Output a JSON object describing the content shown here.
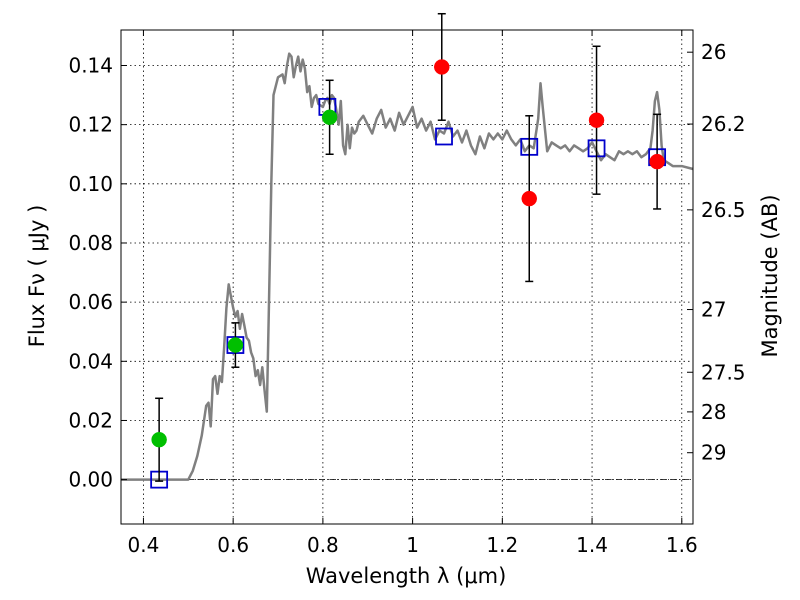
{
  "chart_data": {
    "type": "scatter",
    "xlabel": "Wavelength  λ (μm)",
    "ylabel": "Flux  Fν  ( μJy )",
    "y2label": "Magnitude (AB)",
    "xlim": [
      0.35,
      1.625
    ],
    "ylim": [
      -0.015,
      0.152
    ],
    "grid": true,
    "x_ticks": [
      {
        "value": 0.4,
        "label": "0.4"
      },
      {
        "value": 0.6,
        "label": "0.6"
      },
      {
        "value": 0.8,
        "label": "0.8"
      },
      {
        "value": 1.0,
        "label": "1"
      },
      {
        "value": 1.2,
        "label": "1.2"
      },
      {
        "value": 1.4,
        "label": "1.4"
      },
      {
        "value": 1.6,
        "label": "1.6"
      }
    ],
    "y_ticks": [
      {
        "value": 0.0,
        "label": "0.00"
      },
      {
        "value": 0.02,
        "label": "0.02"
      },
      {
        "value": 0.04,
        "label": "0.04"
      },
      {
        "value": 0.06,
        "label": "0.06"
      },
      {
        "value": 0.08,
        "label": "0.08"
      },
      {
        "value": 0.1,
        "label": "0.10"
      },
      {
        "value": 0.12,
        "label": "0.12"
      },
      {
        "value": 0.14,
        "label": "0.14"
      }
    ],
    "y2_ticks": [
      {
        "label": "26",
        "flux": 0.1445
      },
      {
        "label": "26.2",
        "flux": 0.1202
      },
      {
        "label": "26.5",
        "flux": 0.0912
      },
      {
        "label": "27",
        "flux": 0.0575
      },
      {
        "label": "27.5",
        "flux": 0.0363
      },
      {
        "label": "28",
        "flux": 0.0229
      },
      {
        "label": "29",
        "flux": 0.0091
      }
    ],
    "zero_line": 0.0,
    "series": [
      {
        "kind": "line",
        "color": "#808080",
        "points": [
          [
            0.35,
            0.0
          ],
          [
            0.5,
            0.0
          ],
          [
            0.51,
            0.003
          ],
          [
            0.52,
            0.008
          ],
          [
            0.53,
            0.015
          ],
          [
            0.54,
            0.025
          ],
          [
            0.545,
            0.026
          ],
          [
            0.55,
            0.018
          ],
          [
            0.555,
            0.034
          ],
          [
            0.56,
            0.035
          ],
          [
            0.565,
            0.029
          ],
          [
            0.57,
            0.035
          ],
          [
            0.575,
            0.033
          ],
          [
            0.58,
            0.045
          ],
          [
            0.585,
            0.058
          ],
          [
            0.59,
            0.066
          ],
          [
            0.595,
            0.062
          ],
          [
            0.6,
            0.058
          ],
          [
            0.605,
            0.055
          ],
          [
            0.61,
            0.057
          ],
          [
            0.615,
            0.051
          ],
          [
            0.62,
            0.056
          ],
          [
            0.625,
            0.052
          ],
          [
            0.63,
            0.048
          ],
          [
            0.635,
            0.047
          ],
          [
            0.64,
            0.043
          ],
          [
            0.645,
            0.041
          ],
          [
            0.65,
            0.035
          ],
          [
            0.655,
            0.037
          ],
          [
            0.66,
            0.032
          ],
          [
            0.665,
            0.038
          ],
          [
            0.67,
            0.03
          ],
          [
            0.675,
            0.023
          ],
          [
            0.68,
            0.06
          ],
          [
            0.685,
            0.1
          ],
          [
            0.69,
            0.13
          ],
          [
            0.7,
            0.136
          ],
          [
            0.71,
            0.137
          ],
          [
            0.715,
            0.134
          ],
          [
            0.72,
            0.14
          ],
          [
            0.725,
            0.144
          ],
          [
            0.73,
            0.143
          ],
          [
            0.735,
            0.136
          ],
          [
            0.74,
            0.14
          ],
          [
            0.745,
            0.143
          ],
          [
            0.75,
            0.138
          ],
          [
            0.755,
            0.142
          ],
          [
            0.76,
            0.139
          ],
          [
            0.765,
            0.131
          ],
          [
            0.77,
            0.133
          ],
          [
            0.775,
            0.126
          ],
          [
            0.78,
            0.129
          ],
          [
            0.785,
            0.13
          ],
          [
            0.79,
            0.127
          ],
          [
            0.8,
            0.126
          ],
          [
            0.805,
            0.128
          ],
          [
            0.81,
            0.129
          ],
          [
            0.815,
            0.127
          ],
          [
            0.82,
            0.13
          ],
          [
            0.825,
            0.129
          ],
          [
            0.83,
            0.125
          ],
          [
            0.835,
            0.12
          ],
          [
            0.84,
            0.128
          ],
          [
            0.845,
            0.113
          ],
          [
            0.85,
            0.11
          ],
          [
            0.855,
            0.12
          ],
          [
            0.86,
            0.112
          ],
          [
            0.865,
            0.119
          ],
          [
            0.87,
            0.117
          ],
          [
            0.875,
            0.118
          ],
          [
            0.88,
            0.121
          ],
          [
            0.89,
            0.123
          ],
          [
            0.9,
            0.12
          ],
          [
            0.91,
            0.117
          ],
          [
            0.92,
            0.122
          ],
          [
            0.93,
            0.125
          ],
          [
            0.94,
            0.119
          ],
          [
            0.95,
            0.122
          ],
          [
            0.96,
            0.118
          ],
          [
            0.97,
            0.124
          ],
          [
            0.98,
            0.12
          ],
          [
            0.99,
            0.123
          ],
          [
            1.0,
            0.126
          ],
          [
            1.01,
            0.119
          ],
          [
            1.02,
            0.122
          ],
          [
            1.03,
            0.118
          ],
          [
            1.04,
            0.121
          ],
          [
            1.05,
            0.115
          ],
          [
            1.06,
            0.118
          ],
          [
            1.07,
            0.117
          ],
          [
            1.08,
            0.121
          ],
          [
            1.09,
            0.116
          ],
          [
            1.1,
            0.118
          ],
          [
            1.11,
            0.114
          ],
          [
            1.12,
            0.118
          ],
          [
            1.13,
            0.113
          ],
          [
            1.14,
            0.11
          ],
          [
            1.15,
            0.116
          ],
          [
            1.16,
            0.112
          ],
          [
            1.17,
            0.117
          ],
          [
            1.18,
            0.115
          ],
          [
            1.19,
            0.117
          ],
          [
            1.2,
            0.115
          ],
          [
            1.21,
            0.118
          ],
          [
            1.22,
            0.115
          ],
          [
            1.23,
            0.113
          ],
          [
            1.24,
            0.115
          ],
          [
            1.25,
            0.111
          ],
          [
            1.26,
            0.113
          ],
          [
            1.27,
            0.112
          ],
          [
            1.28,
            0.122
          ],
          [
            1.285,
            0.134
          ],
          [
            1.29,
            0.126
          ],
          [
            1.3,
            0.111
          ],
          [
            1.31,
            0.114
          ],
          [
            1.32,
            0.113
          ],
          [
            1.33,
            0.112
          ],
          [
            1.34,
            0.113
          ],
          [
            1.35,
            0.111
          ],
          [
            1.36,
            0.113
          ],
          [
            1.37,
            0.112
          ],
          [
            1.38,
            0.111
          ],
          [
            1.39,
            0.112
          ],
          [
            1.4,
            0.114
          ],
          [
            1.41,
            0.111
          ],
          [
            1.42,
            0.108
          ],
          [
            1.43,
            0.11
          ],
          [
            1.44,
            0.109
          ],
          [
            1.45,
            0.108
          ],
          [
            1.46,
            0.111
          ],
          [
            1.47,
            0.11
          ],
          [
            1.48,
            0.111
          ],
          [
            1.49,
            0.11
          ],
          [
            1.5,
            0.111
          ],
          [
            1.51,
            0.109
          ],
          [
            1.52,
            0.11
          ],
          [
            1.53,
            0.112
          ],
          [
            1.535,
            0.118
          ],
          [
            1.54,
            0.128
          ],
          [
            1.545,
            0.131
          ],
          [
            1.55,
            0.125
          ],
          [
            1.555,
            0.113
          ],
          [
            1.56,
            0.108
          ],
          [
            1.57,
            0.107
          ],
          [
            1.58,
            0.106
          ],
          [
            1.6,
            0.106
          ],
          [
            1.625,
            0.105
          ]
        ]
      },
      {
        "kind": "square",
        "color": "#0000cc",
        "x": [
          0.435,
          0.605,
          0.81,
          1.07,
          1.26,
          1.41,
          1.545
        ],
        "y": [
          0.0,
          0.0455,
          0.126,
          0.116,
          0.1125,
          0.112,
          0.109
        ]
      },
      {
        "kind": "circle",
        "color": "#00bf00",
        "x": [
          0.435,
          0.605,
          0.815
        ],
        "y": [
          0.0135,
          0.0455,
          0.1225
        ],
        "err": [
          0.014,
          0.0075,
          0.0125
        ]
      },
      {
        "kind": "circle",
        "color": "#ff0000",
        "x": [
          1.065,
          1.26,
          1.41,
          1.545
        ],
        "y": [
          0.1395,
          0.095,
          0.1215,
          0.1075
        ],
        "err": [
          0.018,
          0.028,
          0.025,
          0.016
        ]
      }
    ]
  }
}
